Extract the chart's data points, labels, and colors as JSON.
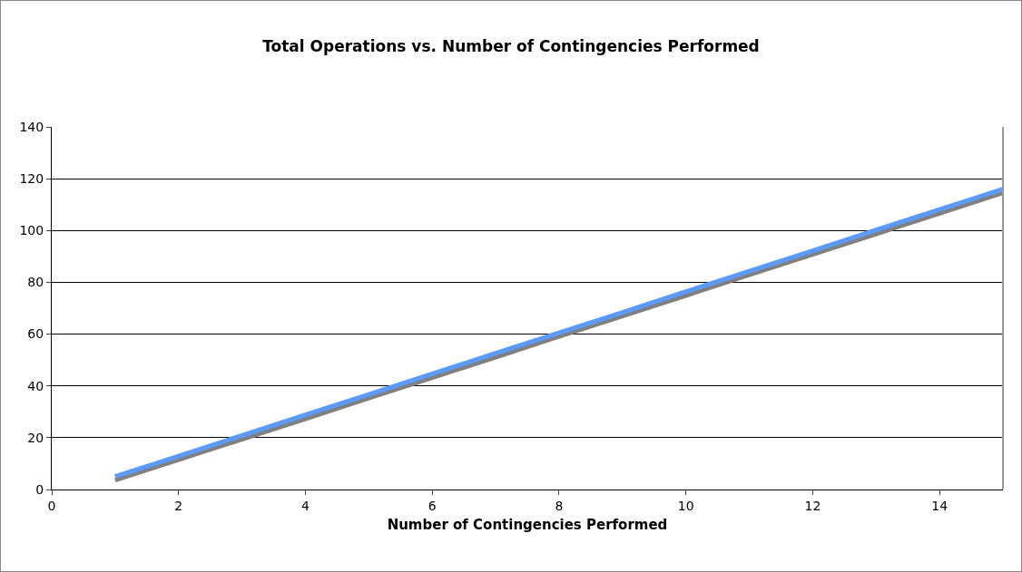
{
  "chart_data": {
    "type": "line",
    "title": "Total Operations vs. Number of Contingencies Performed",
    "xlabel": "Number of Contingencies Performed",
    "x": [
      1,
      2,
      3,
      4,
      5,
      6,
      7,
      8,
      9,
      10,
      11,
      12,
      13,
      14,
      15
    ],
    "series": [
      {
        "color": "#808080",
        "values": [
          3.6,
          11.5,
          19.4,
          27.3,
          35.3,
          43.2,
          51.1,
          59.1,
          67,
          74.9,
          82.9,
          90.8,
          98.7,
          106.6,
          114.6
        ]
      },
      {
        "color": "#5b9bff",
        "values": [
          5,
          12.9,
          20.9,
          28.8,
          36.7,
          44.7,
          52.6,
          60.5,
          68.4,
          76.4,
          84.3,
          92.2,
          100.2,
          108.1,
          116
        ]
      }
    ],
    "xlim": [
      0,
      15
    ],
    "xticks": [
      0,
      2,
      4,
      6,
      8,
      10,
      12,
      14
    ],
    "ylim": [
      0,
      140
    ],
    "yticks": [
      0,
      20,
      40,
      60,
      80,
      100,
      120,
      140
    ],
    "grid": "y",
    "marker": "none",
    "line_style": "solid"
  }
}
